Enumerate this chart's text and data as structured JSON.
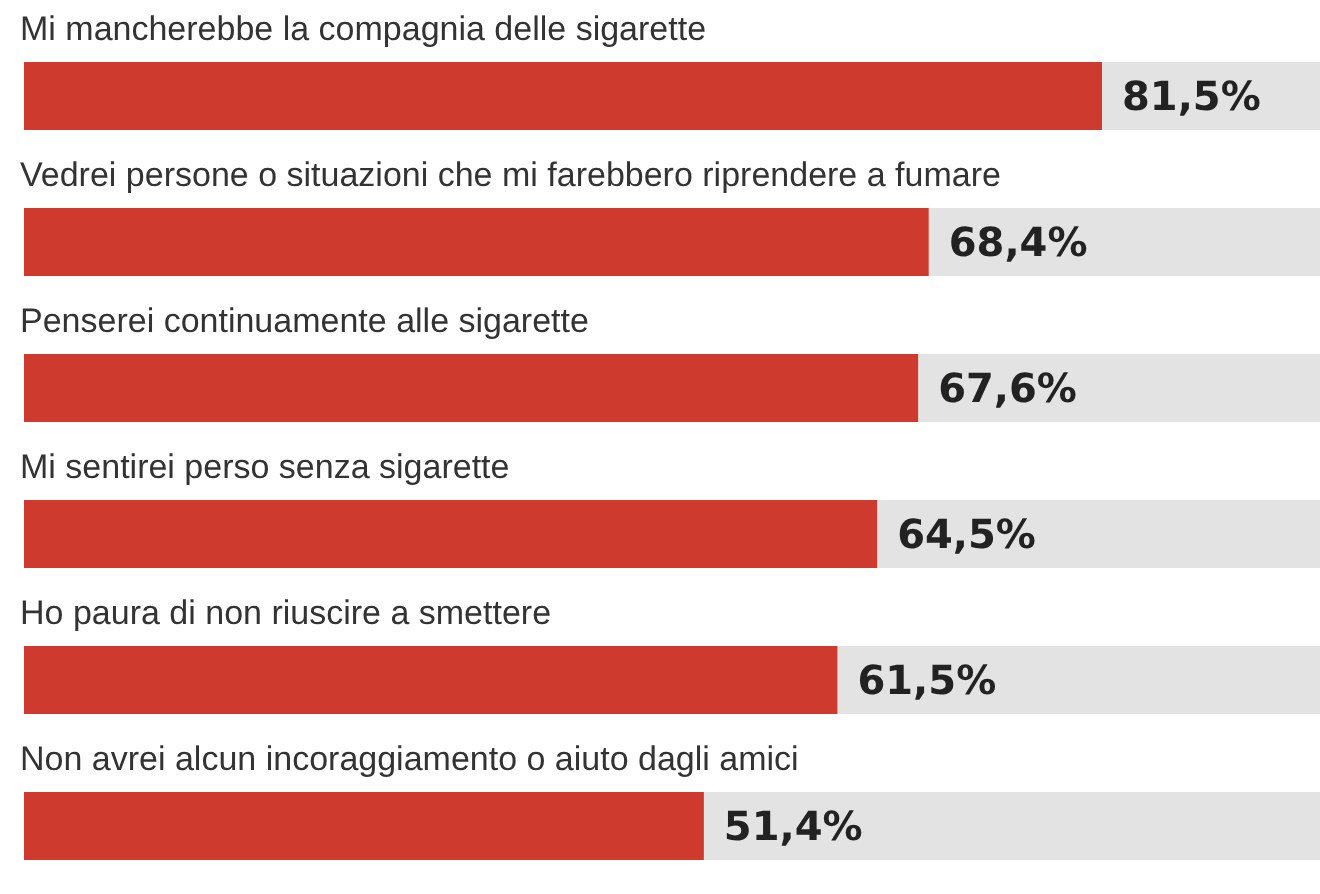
{
  "chart_data": {
    "type": "bar",
    "orientation": "horizontal",
    "categories": [
      "Mi mancherebbe la compagnia delle sigarette",
      "Vedrei persone o situazioni che mi farebbero riprendere a fumare",
      "Penserei continuamente alle sigarette",
      "Mi sentirei perso senza sigarette",
      "Ho paura di non riuscire a smettere",
      "Non avrei alcun incoraggiamento o aiuto dagli amici"
    ],
    "values": [
      81.5,
      68.4,
      67.6,
      64.5,
      61.5,
      51.4
    ],
    "value_labels": [
      "81,5%",
      "68,4%",
      "67,6%",
      "64,5%",
      "61,5%",
      "51,4%"
    ],
    "color": "#cf3a2e"
  }
}
